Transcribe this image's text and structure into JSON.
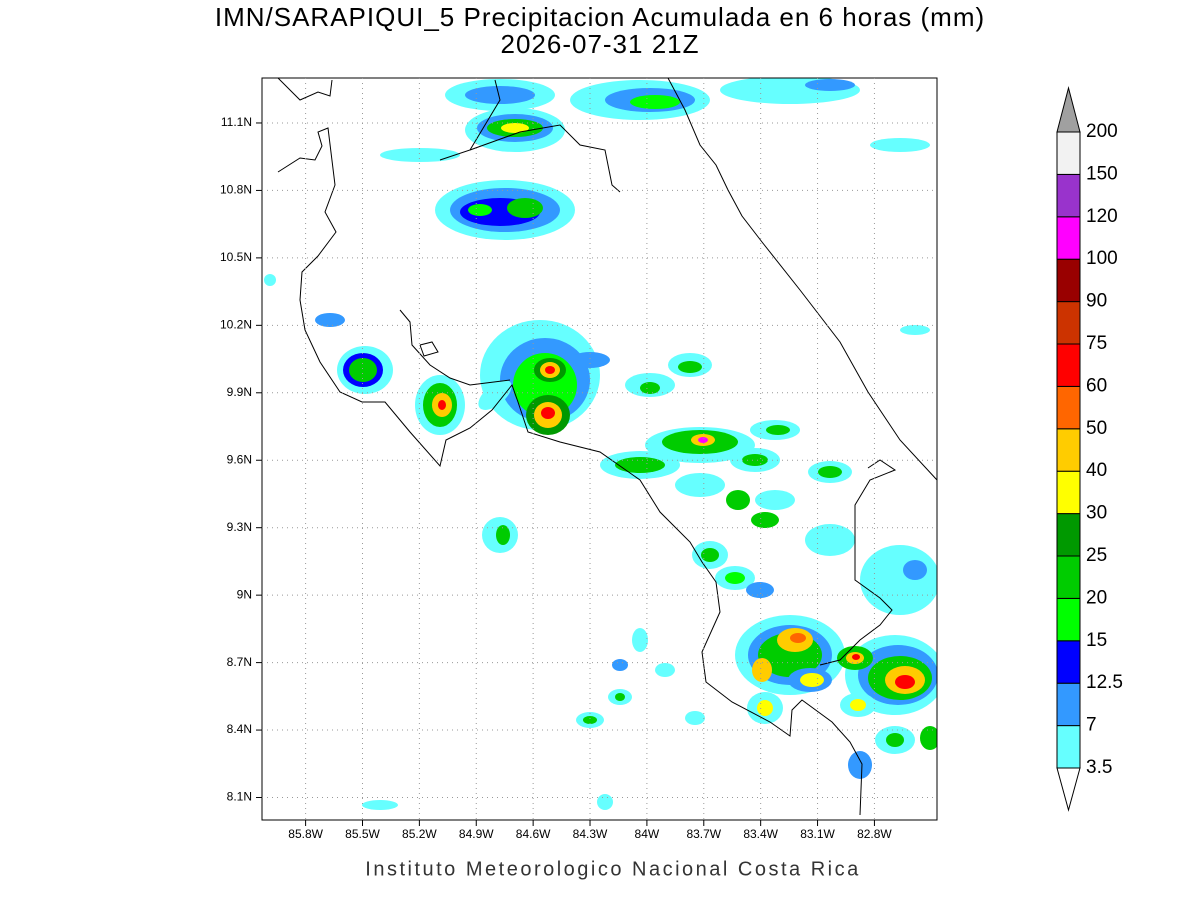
{
  "title": "IMN/SARAPIQUI_5 Precipitacion Acumulada en 6 horas (mm)",
  "subtitle": "2026-07-31 21Z",
  "map": {
    "xlim": [
      -86.03,
      -82.47
    ],
    "ylim": [
      8.0,
      11.3
    ],
    "xticks": [
      {
        "value": -85.8,
        "label": "85.8W"
      },
      {
        "value": -85.5,
        "label": "85.5W"
      },
      {
        "value": -85.2,
        "label": "85.2W"
      },
      {
        "value": -84.9,
        "label": "84.9W"
      },
      {
        "value": -84.6,
        "label": "84.6W"
      },
      {
        "value": -84.3,
        "label": "84.3W"
      },
      {
        "value": -84.0,
        "label": "84W"
      },
      {
        "value": -83.7,
        "label": "83.7W"
      },
      {
        "value": -83.4,
        "label": "83.4W"
      },
      {
        "value": -83.1,
        "label": "83.1W"
      },
      {
        "value": -82.8,
        "label": "82.8W"
      }
    ],
    "yticks": [
      {
        "value": 8.1,
        "label": "8.1N"
      },
      {
        "value": 8.4,
        "label": "8.4N"
      },
      {
        "value": 8.7,
        "label": "8.7N"
      },
      {
        "value": 9.0,
        "label": "9N"
      },
      {
        "value": 9.3,
        "label": "9.3N"
      },
      {
        "value": 9.6,
        "label": "9.6N"
      },
      {
        "value": 9.9,
        "label": "9.9N"
      },
      {
        "value": 10.2,
        "label": "10.2N"
      },
      {
        "value": 10.5,
        "label": "10.5N"
      },
      {
        "value": 10.8,
        "label": "10.8N"
      },
      {
        "value": 11.1,
        "label": "11.1N"
      }
    ],
    "grid": true
  },
  "colorbar": {
    "levels": [
      3.5,
      7,
      12.5,
      15,
      20,
      25,
      30,
      40,
      50,
      60,
      75,
      90,
      100,
      120,
      150,
      200
    ],
    "colors": [
      "#66ffff",
      "#3399ff",
      "#0000ff",
      "#00ff00",
      "#00cc00",
      "#009900",
      "#ffff00",
      "#ffcc00",
      "#ff6600",
      "#ff0000",
      "#cc3300",
      "#990000",
      "#ff00ff",
      "#9933cc",
      "#f2f2f2"
    ]
  },
  "footer": "Instituto Meteorologico Nacional Costa Rica"
}
